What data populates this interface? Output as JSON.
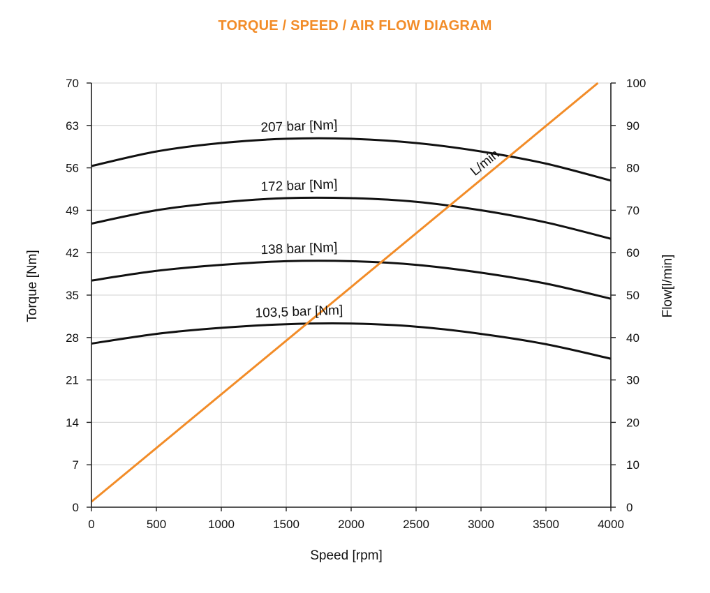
{
  "chart_data": {
    "type": "line",
    "title": "TORQUE / SPEED / AIR FLOW DIAGRAM",
    "xlabel": "Speed [rpm]",
    "ylabel": "Torque [Nm]",
    "y2label": "Flow[l/min]",
    "xlim": [
      0,
      4000
    ],
    "ylim": [
      0,
      70
    ],
    "y2lim": [
      0,
      100
    ],
    "x_ticks": [
      "0",
      "500",
      "1000",
      "1500",
      "2000",
      "2500",
      "3000",
      "3500",
      "4000"
    ],
    "y_ticks": [
      "0",
      "7",
      "14",
      "21",
      "28",
      "35",
      "42",
      "49",
      "56",
      "63",
      "70"
    ],
    "y2_ticks": [
      "0",
      "10",
      "20",
      "30",
      "40",
      "50",
      "60",
      "70",
      "80",
      "90",
      "100"
    ],
    "grid": true,
    "series": [
      {
        "name": "207 bar [Nm]",
        "axis": "left",
        "x": [
          0,
          500,
          1000,
          1500,
          2000,
          2500,
          3000,
          3500,
          4000
        ],
        "values": [
          56.3,
          58.7,
          60.1,
          60.8,
          60.8,
          60.1,
          58.7,
          56.7,
          53.9
        ]
      },
      {
        "name": "172 bar [Nm]",
        "axis": "left",
        "x": [
          0,
          500,
          1000,
          1500,
          2000,
          2500,
          3000,
          3500,
          4000
        ],
        "values": [
          46.8,
          49.0,
          50.3,
          51.0,
          51.0,
          50.4,
          49.0,
          47.0,
          44.3
        ]
      },
      {
        "name": "138 bar [Nm]",
        "axis": "left",
        "x": [
          0,
          500,
          1000,
          1500,
          2000,
          2500,
          3000,
          3500,
          4000
        ],
        "values": [
          37.4,
          39.0,
          40.0,
          40.6,
          40.6,
          40.0,
          38.7,
          36.9,
          34.4
        ]
      },
      {
        "name": "103,5 bar [Nm]",
        "axis": "left",
        "x": [
          0,
          500,
          1000,
          1500,
          2000,
          2500,
          3000,
          3500,
          4000
        ],
        "values": [
          27.0,
          28.6,
          29.6,
          30.2,
          30.3,
          29.8,
          28.6,
          26.9,
          24.5
        ]
      },
      {
        "name": "L/min",
        "axis": "right",
        "color": "#f28c28",
        "x": [
          0,
          3900
        ],
        "values": [
          1.3,
          100
        ]
      }
    ]
  }
}
